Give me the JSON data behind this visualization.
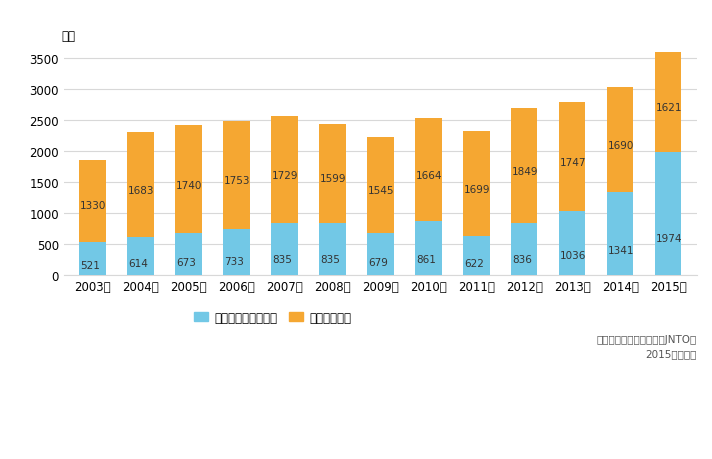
{
  "years": [
    "2003年",
    "2004年",
    "2005年",
    "2006年",
    "2007年",
    "2008年",
    "2009年",
    "2010年",
    "2011年",
    "2012年",
    "2013年",
    "2014年",
    "2015年"
  ],
  "inbound": [
    521,
    614,
    673,
    733,
    835,
    835,
    679,
    861,
    622,
    836,
    1036,
    1341,
    1974
  ],
  "outbound": [
    1330,
    1683,
    1740,
    1753,
    1729,
    1599,
    1545,
    1664,
    1699,
    1849,
    1747,
    1690,
    1621
  ],
  "inbound_color": "#72C8E6",
  "outbound_color": "#F5A732",
  "background_color": "#FFFFFF",
  "ylabel": "万人",
  "ylim": [
    0,
    3700
  ],
  "yticks": [
    0,
    500,
    1000,
    1500,
    2000,
    2500,
    3000,
    3500
  ],
  "legend_inbound": "訪日外国人旅行者数",
  "legend_outbound": "出国日本人数",
  "source_line1": "出典：日本政府観光局（JNTO）",
  "source_line2": "2015は推計値",
  "grid_color": "#D8D8D8",
  "label_fontsize": 7.5,
  "axis_fontsize": 8.5,
  "bar_width": 0.55
}
